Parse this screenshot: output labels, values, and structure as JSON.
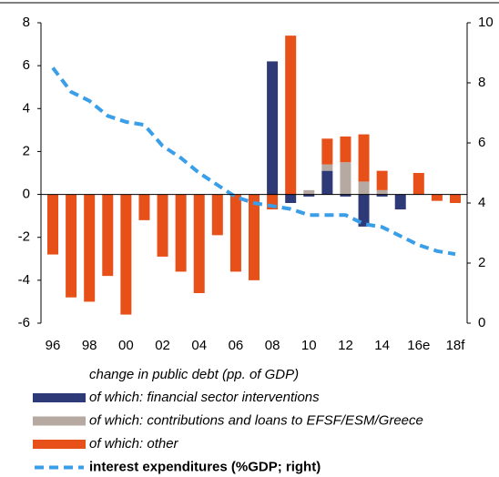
{
  "chart_data": {
    "type": "bar",
    "categories": [
      "96",
      null,
      "98",
      null,
      "00",
      null,
      "02",
      null,
      "04",
      null,
      "06",
      null,
      "08",
      null,
      "10",
      null,
      "12",
      null,
      "14",
      null,
      "16e",
      null,
      "18f"
    ],
    "legend_title": "change in public debt (pp. of GDP)",
    "series": [
      {
        "name": "of which: financial sector interventions",
        "color": "#2e3a78",
        "values": [
          0,
          0,
          0,
          0,
          0,
          0,
          0,
          0,
          0,
          0,
          0,
          0,
          6.2,
          -0.4,
          -0.1,
          1.1,
          -0.1,
          -1.5,
          -0.1,
          -0.7,
          0,
          0,
          0
        ]
      },
      {
        "name": "of which: contributions and loans to EFSF/ESM/Greece",
        "color": "#b5a9a1",
        "values": [
          0,
          0,
          0,
          0,
          0,
          0,
          0,
          0,
          0,
          0,
          0,
          0,
          0,
          0,
          0.2,
          0.3,
          1.5,
          0.6,
          0.2,
          0,
          0,
          0,
          0
        ]
      },
      {
        "name": "of which: other",
        "color": "#e8501a",
        "values": [
          -2.8,
          -4.8,
          -5.0,
          -3.8,
          -5.6,
          -1.2,
          -2.9,
          -3.6,
          -4.6,
          -1.9,
          -3.6,
          -4.0,
          -0.7,
          7.4,
          0,
          1.2,
          1.2,
          2.2,
          0.9,
          0,
          1.0,
          -0.3,
          -0.4
        ]
      },
      {
        "name": "interest expenditures (%GDP; right)",
        "color": "#3a9ee8",
        "type": "line",
        "axis": "y2",
        "dashed": true,
        "values": [
          8.5,
          7.7,
          7.4,
          6.9,
          6.7,
          6.6,
          5.9,
          5.5,
          5.0,
          4.6,
          4.2,
          4.0,
          3.9,
          3.8,
          3.6,
          3.6,
          3.6,
          3.3,
          3.2,
          2.9,
          2.6,
          2.4,
          2.3
        ]
      }
    ],
    "stacked": true,
    "ylim": [
      -6,
      8
    ],
    "yticks": [
      -6,
      -4,
      -2,
      0,
      2,
      4,
      6,
      8
    ],
    "y2lim": [
      0,
      10
    ],
    "y2ticks": [
      0,
      2,
      4,
      6,
      8,
      10
    ],
    "grid": false
  }
}
